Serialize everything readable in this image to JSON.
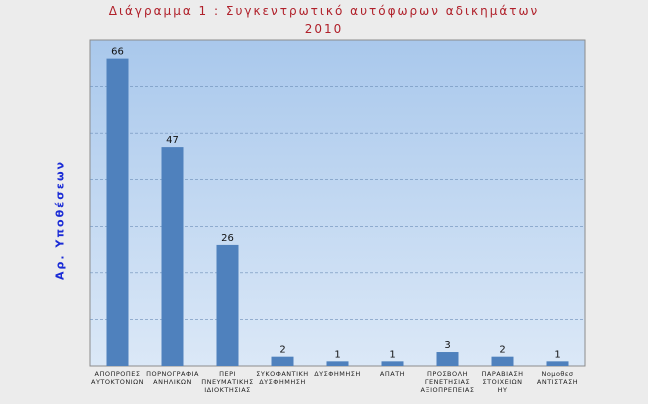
{
  "title_line1": "Διάγραμμα 1 : Συγκεντρωτικό αυτόφωρων αδικημάτων",
  "title_line2": "2010",
  "chart_data": {
    "type": "bar",
    "title": "Διάγραμμα 1 : Συγκεντρωτικό αυτόφωρων αδικημάτων 2010",
    "xlabel": "",
    "ylabel": "Αρ. Υποθέσεων",
    "categories": [
      "ΑΠΟΠΡΟΠΕΣ ΑΥΤΟΚΤΟΝΙΩΝ",
      "ΠΟΡΝΟΓΡΑΦΙΑ ΑΝΗΛΙΚΩΝ",
      "ΠΕΡΙ ΠΝΕΥΜΑΤΙΚΗΣ ΙΔΙΟΚΤΗΣΙΑΣ",
      "ΣΥΚΟΦΑΝΤΙΚΗ ΔΥΣΦΗΜΗΣΗ",
      "ΔΥΣΦΗΜΗΣΗ",
      "ΑΠΑΤΗ",
      "ΠΡΟΣΒΟΛΗ ΓΕΝΕΤΗΣΙΑΣ ΑΞΙΟΠΡΕΠΕΙΑΣ",
      "ΠΑΡΑΒΙΑΣΗ ΣΤΟΙΧΕΙΩΝ ΗΥ",
      "Νομοθεσ ΑΝΤΙΣΤΑΣΗ"
    ],
    "values": [
      66,
      47,
      26,
      2,
      1,
      1,
      3,
      2,
      1
    ],
    "ylim": [
      0,
      70
    ],
    "grid": true,
    "colors": {
      "bar": "#4f81bd",
      "plot_top": "#a9c8ec",
      "plot_bottom": "#dbe8f7"
    }
  }
}
